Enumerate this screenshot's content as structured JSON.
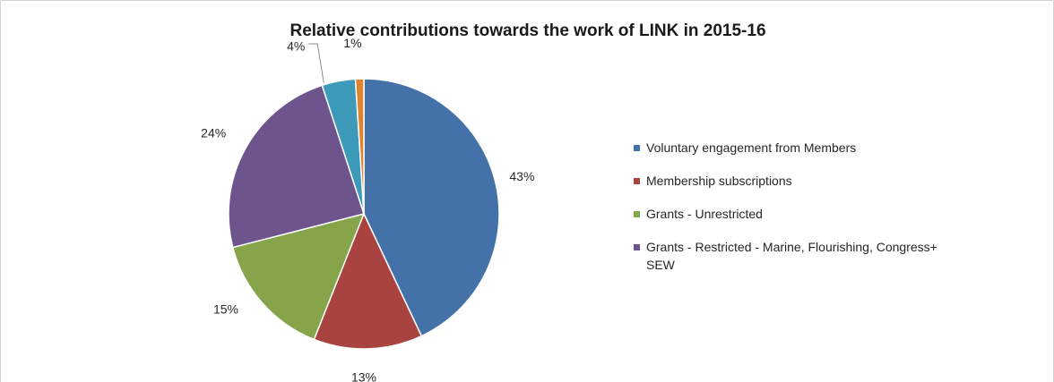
{
  "chart_data": {
    "type": "pie",
    "title": "Relative contributions towards the work of LINK in 2015-16",
    "slices": [
      {
        "label": "Voluntary engagement from Members",
        "value": 43,
        "data_label": "43%",
        "color": "#4472a8",
        "in_legend": true
      },
      {
        "label": "Membership subscriptions",
        "value": 13,
        "data_label": "13%",
        "color": "#a9433f",
        "in_legend": true
      },
      {
        "label": "Grants - Unrestricted",
        "value": 15,
        "data_label": "15%",
        "color": "#86a44a",
        "in_legend": true
      },
      {
        "label": "Grants - Restricted - Marine, Flourishing, Congress+ SEW",
        "value": 24,
        "data_label": "24%",
        "color": "#6e548d",
        "in_legend": true
      },
      {
        "label": "",
        "value": 4,
        "data_label": "4%",
        "color": "#3d9ab8",
        "in_legend": false
      },
      {
        "label": "",
        "value": 1,
        "data_label": "1%",
        "color": "#e0832f",
        "in_legend": false
      }
    ],
    "start_angle": "12 o'clock",
    "direction": "clockwise",
    "legend_position": "right"
  }
}
